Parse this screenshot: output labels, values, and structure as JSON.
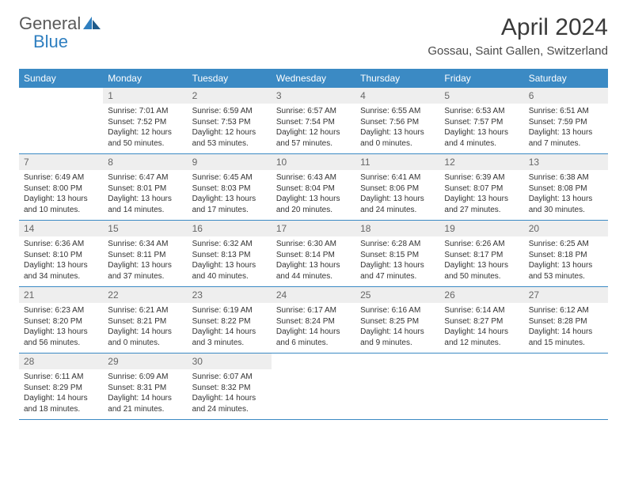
{
  "logo": {
    "line1": "General",
    "line2": "Blue"
  },
  "title": "April 2024",
  "location": "Gossau, Saint Gallen, Switzerland",
  "colors": {
    "header_bg": "#3b8ac4",
    "header_text": "#ffffff",
    "daynum_bg": "#eeeeee",
    "daynum_text": "#666666",
    "cell_border": "#3b8ac4",
    "logo_gray": "#5a5a5a",
    "logo_blue": "#2f7fc0"
  },
  "weekdays": [
    "Sunday",
    "Monday",
    "Tuesday",
    "Wednesday",
    "Thursday",
    "Friday",
    "Saturday"
  ],
  "weeks": [
    {
      "nums": [
        "",
        "1",
        "2",
        "3",
        "4",
        "5",
        "6"
      ],
      "cells": [
        null,
        {
          "sr": "Sunrise: 7:01 AM",
          "ss": "Sunset: 7:52 PM",
          "d1": "Daylight: 12 hours",
          "d2": "and 50 minutes."
        },
        {
          "sr": "Sunrise: 6:59 AM",
          "ss": "Sunset: 7:53 PM",
          "d1": "Daylight: 12 hours",
          "d2": "and 53 minutes."
        },
        {
          "sr": "Sunrise: 6:57 AM",
          "ss": "Sunset: 7:54 PM",
          "d1": "Daylight: 12 hours",
          "d2": "and 57 minutes."
        },
        {
          "sr": "Sunrise: 6:55 AM",
          "ss": "Sunset: 7:56 PM",
          "d1": "Daylight: 13 hours",
          "d2": "and 0 minutes."
        },
        {
          "sr": "Sunrise: 6:53 AM",
          "ss": "Sunset: 7:57 PM",
          "d1": "Daylight: 13 hours",
          "d2": "and 4 minutes."
        },
        {
          "sr": "Sunrise: 6:51 AM",
          "ss": "Sunset: 7:59 PM",
          "d1": "Daylight: 13 hours",
          "d2": "and 7 minutes."
        }
      ]
    },
    {
      "nums": [
        "7",
        "8",
        "9",
        "10",
        "11",
        "12",
        "13"
      ],
      "cells": [
        {
          "sr": "Sunrise: 6:49 AM",
          "ss": "Sunset: 8:00 PM",
          "d1": "Daylight: 13 hours",
          "d2": "and 10 minutes."
        },
        {
          "sr": "Sunrise: 6:47 AM",
          "ss": "Sunset: 8:01 PM",
          "d1": "Daylight: 13 hours",
          "d2": "and 14 minutes."
        },
        {
          "sr": "Sunrise: 6:45 AM",
          "ss": "Sunset: 8:03 PM",
          "d1": "Daylight: 13 hours",
          "d2": "and 17 minutes."
        },
        {
          "sr": "Sunrise: 6:43 AM",
          "ss": "Sunset: 8:04 PM",
          "d1": "Daylight: 13 hours",
          "d2": "and 20 minutes."
        },
        {
          "sr": "Sunrise: 6:41 AM",
          "ss": "Sunset: 8:06 PM",
          "d1": "Daylight: 13 hours",
          "d2": "and 24 minutes."
        },
        {
          "sr": "Sunrise: 6:39 AM",
          "ss": "Sunset: 8:07 PM",
          "d1": "Daylight: 13 hours",
          "d2": "and 27 minutes."
        },
        {
          "sr": "Sunrise: 6:38 AM",
          "ss": "Sunset: 8:08 PM",
          "d1": "Daylight: 13 hours",
          "d2": "and 30 minutes."
        }
      ]
    },
    {
      "nums": [
        "14",
        "15",
        "16",
        "17",
        "18",
        "19",
        "20"
      ],
      "cells": [
        {
          "sr": "Sunrise: 6:36 AM",
          "ss": "Sunset: 8:10 PM",
          "d1": "Daylight: 13 hours",
          "d2": "and 34 minutes."
        },
        {
          "sr": "Sunrise: 6:34 AM",
          "ss": "Sunset: 8:11 PM",
          "d1": "Daylight: 13 hours",
          "d2": "and 37 minutes."
        },
        {
          "sr": "Sunrise: 6:32 AM",
          "ss": "Sunset: 8:13 PM",
          "d1": "Daylight: 13 hours",
          "d2": "and 40 minutes."
        },
        {
          "sr": "Sunrise: 6:30 AM",
          "ss": "Sunset: 8:14 PM",
          "d1": "Daylight: 13 hours",
          "d2": "and 44 minutes."
        },
        {
          "sr": "Sunrise: 6:28 AM",
          "ss": "Sunset: 8:15 PM",
          "d1": "Daylight: 13 hours",
          "d2": "and 47 minutes."
        },
        {
          "sr": "Sunrise: 6:26 AM",
          "ss": "Sunset: 8:17 PM",
          "d1": "Daylight: 13 hours",
          "d2": "and 50 minutes."
        },
        {
          "sr": "Sunrise: 6:25 AM",
          "ss": "Sunset: 8:18 PM",
          "d1": "Daylight: 13 hours",
          "d2": "and 53 minutes."
        }
      ]
    },
    {
      "nums": [
        "21",
        "22",
        "23",
        "24",
        "25",
        "26",
        "27"
      ],
      "cells": [
        {
          "sr": "Sunrise: 6:23 AM",
          "ss": "Sunset: 8:20 PM",
          "d1": "Daylight: 13 hours",
          "d2": "and 56 minutes."
        },
        {
          "sr": "Sunrise: 6:21 AM",
          "ss": "Sunset: 8:21 PM",
          "d1": "Daylight: 14 hours",
          "d2": "and 0 minutes."
        },
        {
          "sr": "Sunrise: 6:19 AM",
          "ss": "Sunset: 8:22 PM",
          "d1": "Daylight: 14 hours",
          "d2": "and 3 minutes."
        },
        {
          "sr": "Sunrise: 6:17 AM",
          "ss": "Sunset: 8:24 PM",
          "d1": "Daylight: 14 hours",
          "d2": "and 6 minutes."
        },
        {
          "sr": "Sunrise: 6:16 AM",
          "ss": "Sunset: 8:25 PM",
          "d1": "Daylight: 14 hours",
          "d2": "and 9 minutes."
        },
        {
          "sr": "Sunrise: 6:14 AM",
          "ss": "Sunset: 8:27 PM",
          "d1": "Daylight: 14 hours",
          "d2": "and 12 minutes."
        },
        {
          "sr": "Sunrise: 6:12 AM",
          "ss": "Sunset: 8:28 PM",
          "d1": "Daylight: 14 hours",
          "d2": "and 15 minutes."
        }
      ]
    },
    {
      "nums": [
        "28",
        "29",
        "30",
        "",
        "",
        "",
        ""
      ],
      "cells": [
        {
          "sr": "Sunrise: 6:11 AM",
          "ss": "Sunset: 8:29 PM",
          "d1": "Daylight: 14 hours",
          "d2": "and 18 minutes."
        },
        {
          "sr": "Sunrise: 6:09 AM",
          "ss": "Sunset: 8:31 PM",
          "d1": "Daylight: 14 hours",
          "d2": "and 21 minutes."
        },
        {
          "sr": "Sunrise: 6:07 AM",
          "ss": "Sunset: 8:32 PM",
          "d1": "Daylight: 14 hours",
          "d2": "and 24 minutes."
        },
        null,
        null,
        null,
        null
      ]
    }
  ]
}
